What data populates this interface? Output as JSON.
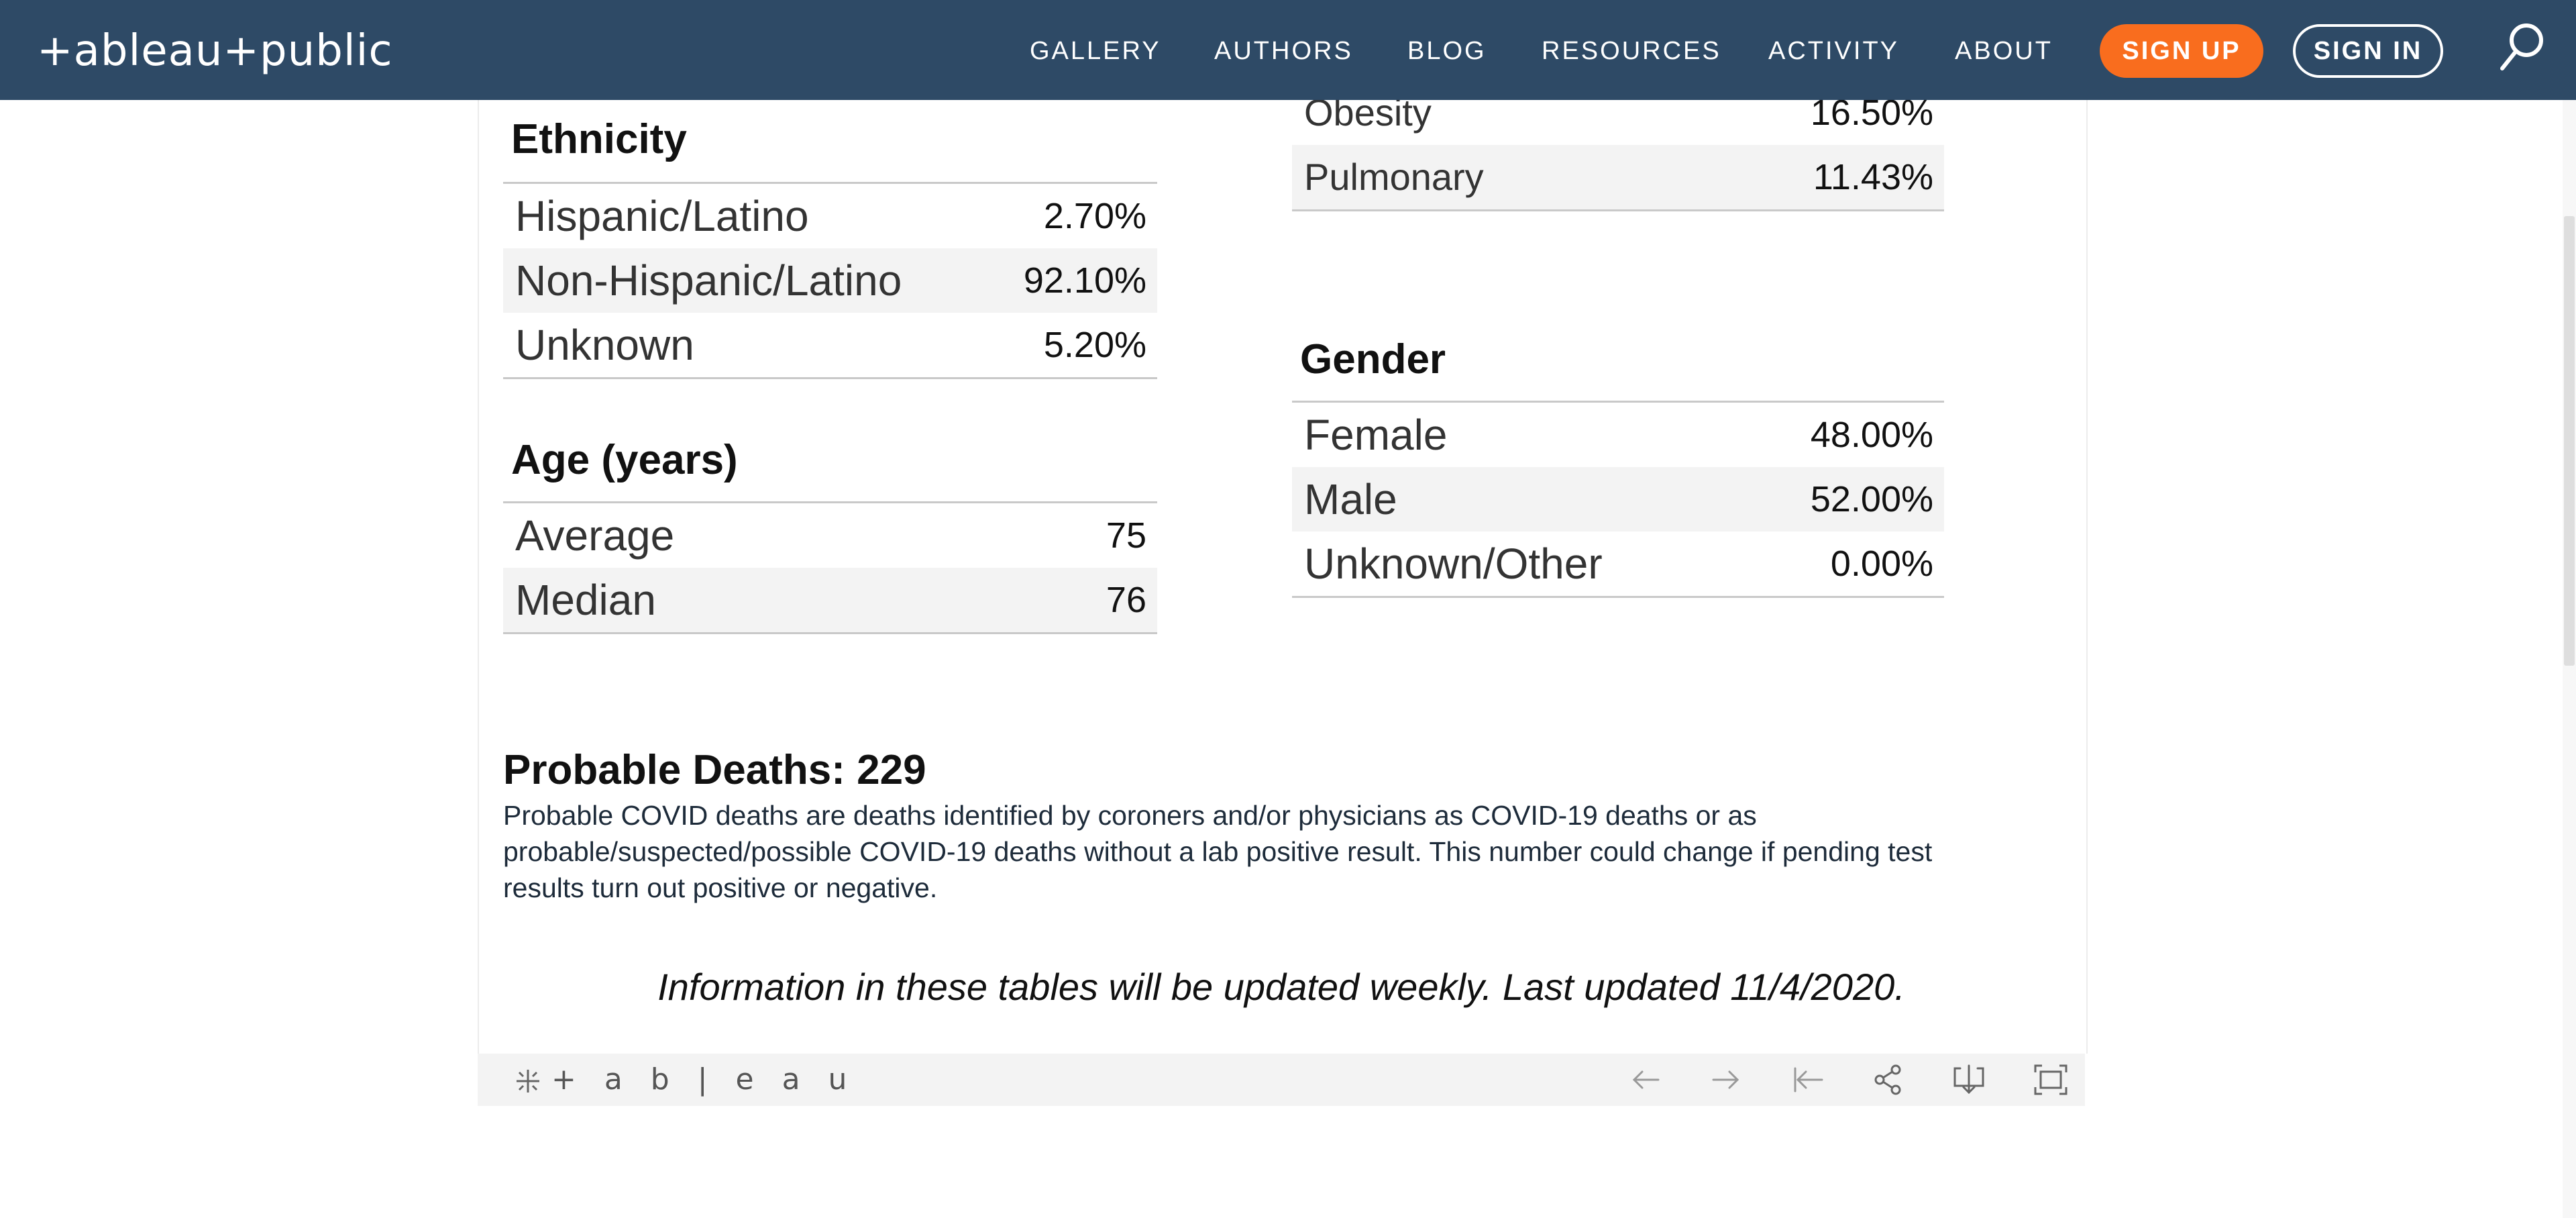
{
  "nav": {
    "logo": "+ableau+public",
    "items": [
      "GALLERY",
      "AUTHORS",
      "BLOG",
      "RESOURCES",
      "ACTIVITY",
      "ABOUT"
    ],
    "signup": "SIGN UP",
    "signin": "SIGN IN",
    "colors": {
      "bar": "#2e4a66",
      "signup": "#f96d1e"
    }
  },
  "conditions": {
    "rows": [
      {
        "label": "Obesity",
        "value": "16.50%"
      },
      {
        "label": "Pulmonary",
        "value": "11.43%"
      }
    ]
  },
  "ethnicity": {
    "title": "Ethnicity",
    "rows": [
      {
        "label": "Hispanic/Latino",
        "value": "2.70%"
      },
      {
        "label": "Non-Hispanic/Latino",
        "value": "92.10%"
      },
      {
        "label": "Unknown",
        "value": "5.20%"
      }
    ]
  },
  "age": {
    "title": "Age (years)",
    "rows": [
      {
        "label": "Average",
        "value": "75"
      },
      {
        "label": "Median",
        "value": "76"
      }
    ]
  },
  "gender": {
    "title": "Gender",
    "rows": [
      {
        "label": "Female",
        "value": "48.00%"
      },
      {
        "label": "Male",
        "value": "52.00%"
      },
      {
        "label": "Unknown/Other",
        "value": "0.00%"
      }
    ]
  },
  "probable": {
    "title": "Probable Deaths: 229",
    "text": "Probable COVID deaths are deaths identified by coroners and/or physicians as COVID-19 deaths or as probable/suspected/possible COVID-19 deaths without a lab positive result. This number could change if pending test results turn out positive or negative."
  },
  "update_note": "Information in these tables will be updated weekly. Last updated 11/4/2020.",
  "toolbar": {
    "logo": "+ a b | e a u",
    "icons": [
      "undo-icon",
      "redo-icon",
      "revert-icon",
      "share-icon",
      "download-icon",
      "fullscreen-icon"
    ]
  }
}
